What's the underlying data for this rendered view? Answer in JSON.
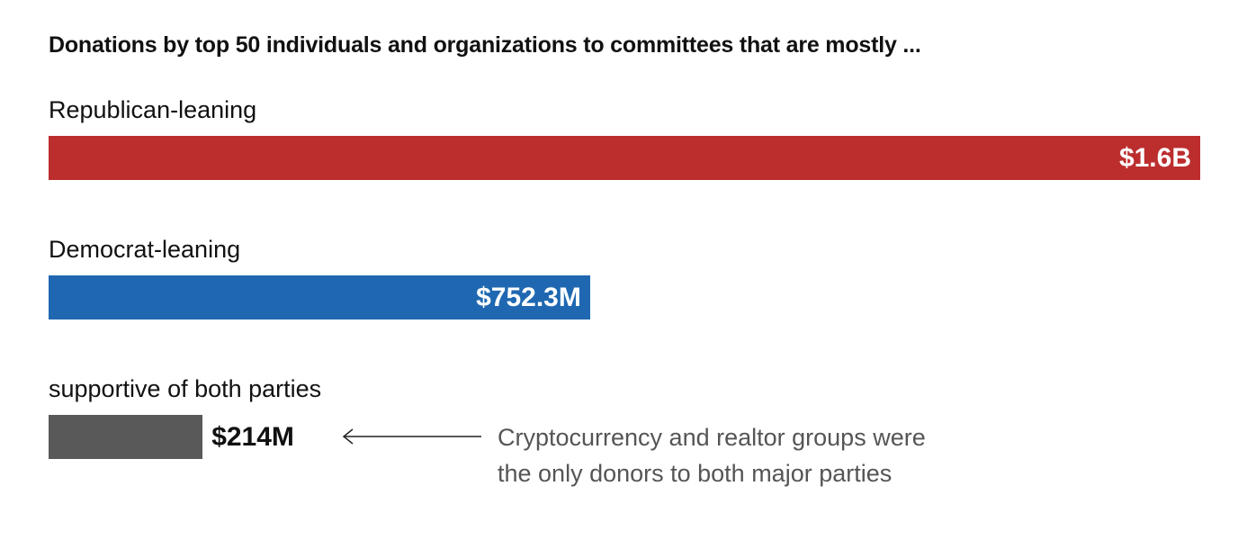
{
  "chart_data": {
    "type": "bar",
    "orientation": "horizontal",
    "title": "Donations by top 50 individuals and organizations to committees that are mostly ...",
    "categories": [
      "Republican-leaning",
      "Democrat-leaning",
      "supportive of both parties"
    ],
    "values": [
      1.6,
      0.7523,
      0.214
    ],
    "value_unit": "billions of dollars",
    "data_labels": [
      "$1.6B",
      "$752.3M",
      "$214M"
    ],
    "colors": [
      "#bc2e2e",
      "#1f68b1",
      "#595959"
    ],
    "xlim": [
      0,
      1.6
    ],
    "grid": false,
    "annotation": {
      "target": "supportive of both parties",
      "lines": [
        "Cryptocurrency and realtor groups were",
        "the only donors to both major parties"
      ]
    }
  }
}
